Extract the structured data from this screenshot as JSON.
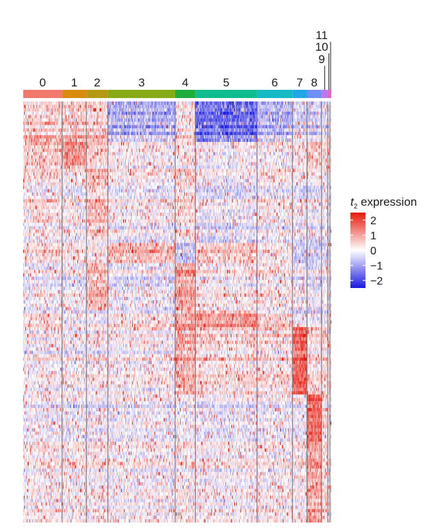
{
  "chart_data": {
    "type": "heatmap",
    "title": "",
    "xlabel": "",
    "ylabel": "",
    "legend_position": "right",
    "color_scale": {
      "low": "#1a1adf",
      "mid": "#ffffff",
      "high": "#e8180c",
      "min": -2.5,
      "max": 2.5
    },
    "legend": {
      "title_main": "t",
      "title_sub": "2",
      "title_rest": " expression",
      "ticks": [
        {
          "value": 2,
          "label": "2"
        },
        {
          "value": 1,
          "label": "1"
        },
        {
          "value": 0,
          "label": "0"
        },
        {
          "value": -1,
          "label": "−1"
        },
        {
          "value": -2,
          "label": "−2"
        }
      ]
    },
    "clusters": [
      {
        "id": "0",
        "label": "0",
        "color": "#ef7a6c",
        "cells": 56
      },
      {
        "id": "1",
        "label": "1",
        "color": "#d98b0e",
        "cells": 35
      },
      {
        "id": "2",
        "label": "2",
        "color": "#b49a10",
        "cells": 31
      },
      {
        "id": "3",
        "label": "3",
        "color": "#86ab17",
        "cells": 97
      },
      {
        "id": "4",
        "label": "4",
        "color": "#1fae3e",
        "cells": 29
      },
      {
        "id": "5",
        "label": "5",
        "color": "#12bd8d",
        "cells": 89
      },
      {
        "id": "6",
        "label": "6",
        "color": "#15bac4",
        "cells": 51
      },
      {
        "id": "7",
        "label": "7",
        "color": "#20a8e6",
        "cells": 21
      },
      {
        "id": "8",
        "label": "8",
        "color": "#6f8ff5",
        "cells": 21
      },
      {
        "id": "9",
        "label": "9",
        "color": "#c076ee",
        "cells": 9
      },
      {
        "id": "10",
        "label": "10",
        "color": "#ea62cc",
        "cells": 3
      },
      {
        "id": "11",
        "label": "11",
        "color": "#f466a0",
        "cells": 2
      }
    ],
    "gene_blocks": [
      {
        "genes": 12,
        "pattern": {
          "0": 0.4,
          "1": 0.5,
          "2": 0.3,
          "3": -1.0,
          "4": 0.1,
          "5": -1.8,
          "6": -0.9,
          "7": -0.5,
          "8": -0.6,
          "9": -0.3,
          "10": 0.0,
          "11": 0.0
        }
      },
      {
        "genes": 8,
        "pattern": {
          "0": 0.3,
          "1": 0.9,
          "2": 0.2,
          "3": -0.2,
          "4": 0.0,
          "5": -0.3,
          "6": -0.2,
          "7": -0.1,
          "8": 0.4,
          "9": 0.0,
          "10": 0.0,
          "11": 0.0
        }
      },
      {
        "genes": 22,
        "pattern": {
          "0": 0.2,
          "1": 0.1,
          "2": 0.6,
          "3": 0.0,
          "4": 0.4,
          "5": -0.2,
          "6": 0.1,
          "7": -0.1,
          "8": -0.1,
          "9": 0.0,
          "10": 0.0,
          "11": 0.0
        }
      },
      {
        "genes": 6,
        "pattern": {
          "0": 0.4,
          "1": 0.4,
          "2": 0.2,
          "3": 0.8,
          "4": -0.6,
          "5": 0.6,
          "6": 0.2,
          "7": -0.6,
          "8": -0.6,
          "9": -0.4,
          "10": 0.0,
          "11": 0.0
        }
      },
      {
        "genes": 14,
        "pattern": {
          "0": -0.1,
          "1": -0.1,
          "2": 0.7,
          "3": -0.2,
          "4": 1.1,
          "5": 0.1,
          "6": 0.2,
          "7": -0.1,
          "8": -0.2,
          "9": 0.0,
          "10": 0.0,
          "11": 0.0
        }
      },
      {
        "genes": 5,
        "pattern": {
          "0": 0.2,
          "1": -0.2,
          "2": -0.2,
          "3": 0.1,
          "4": 0.9,
          "5": 1.0,
          "6": 0.4,
          "7": -0.3,
          "8": -0.3,
          "9": -0.2,
          "10": 0.0,
          "11": 0.0
        }
      },
      {
        "genes": 20,
        "pattern": {
          "0": -0.1,
          "1": -0.1,
          "2": -0.1,
          "3": -0.1,
          "4": 0.8,
          "5": 0.2,
          "6": 0.2,
          "7": 1.6,
          "8": 0.2,
          "9": 0.3,
          "10": 0.0,
          "11": 0.0
        }
      },
      {
        "genes": 14,
        "pattern": {
          "0": -0.2,
          "1": -0.2,
          "2": -0.2,
          "3": -0.2,
          "4": -0.1,
          "5": -0.3,
          "6": -0.2,
          "7": -0.2,
          "8": 1.7,
          "9": 0.2,
          "10": 0.0,
          "11": 0.0
        }
      },
      {
        "genes": 24,
        "pattern": {
          "0": 0.1,
          "1": 0.1,
          "2": 0.1,
          "3": 0.0,
          "4": 0.2,
          "5": 0.0,
          "6": 0.1,
          "7": 0.1,
          "8": 1.0,
          "9": 0.3,
          "10": 0.2,
          "11": 0.1
        }
      }
    ]
  }
}
